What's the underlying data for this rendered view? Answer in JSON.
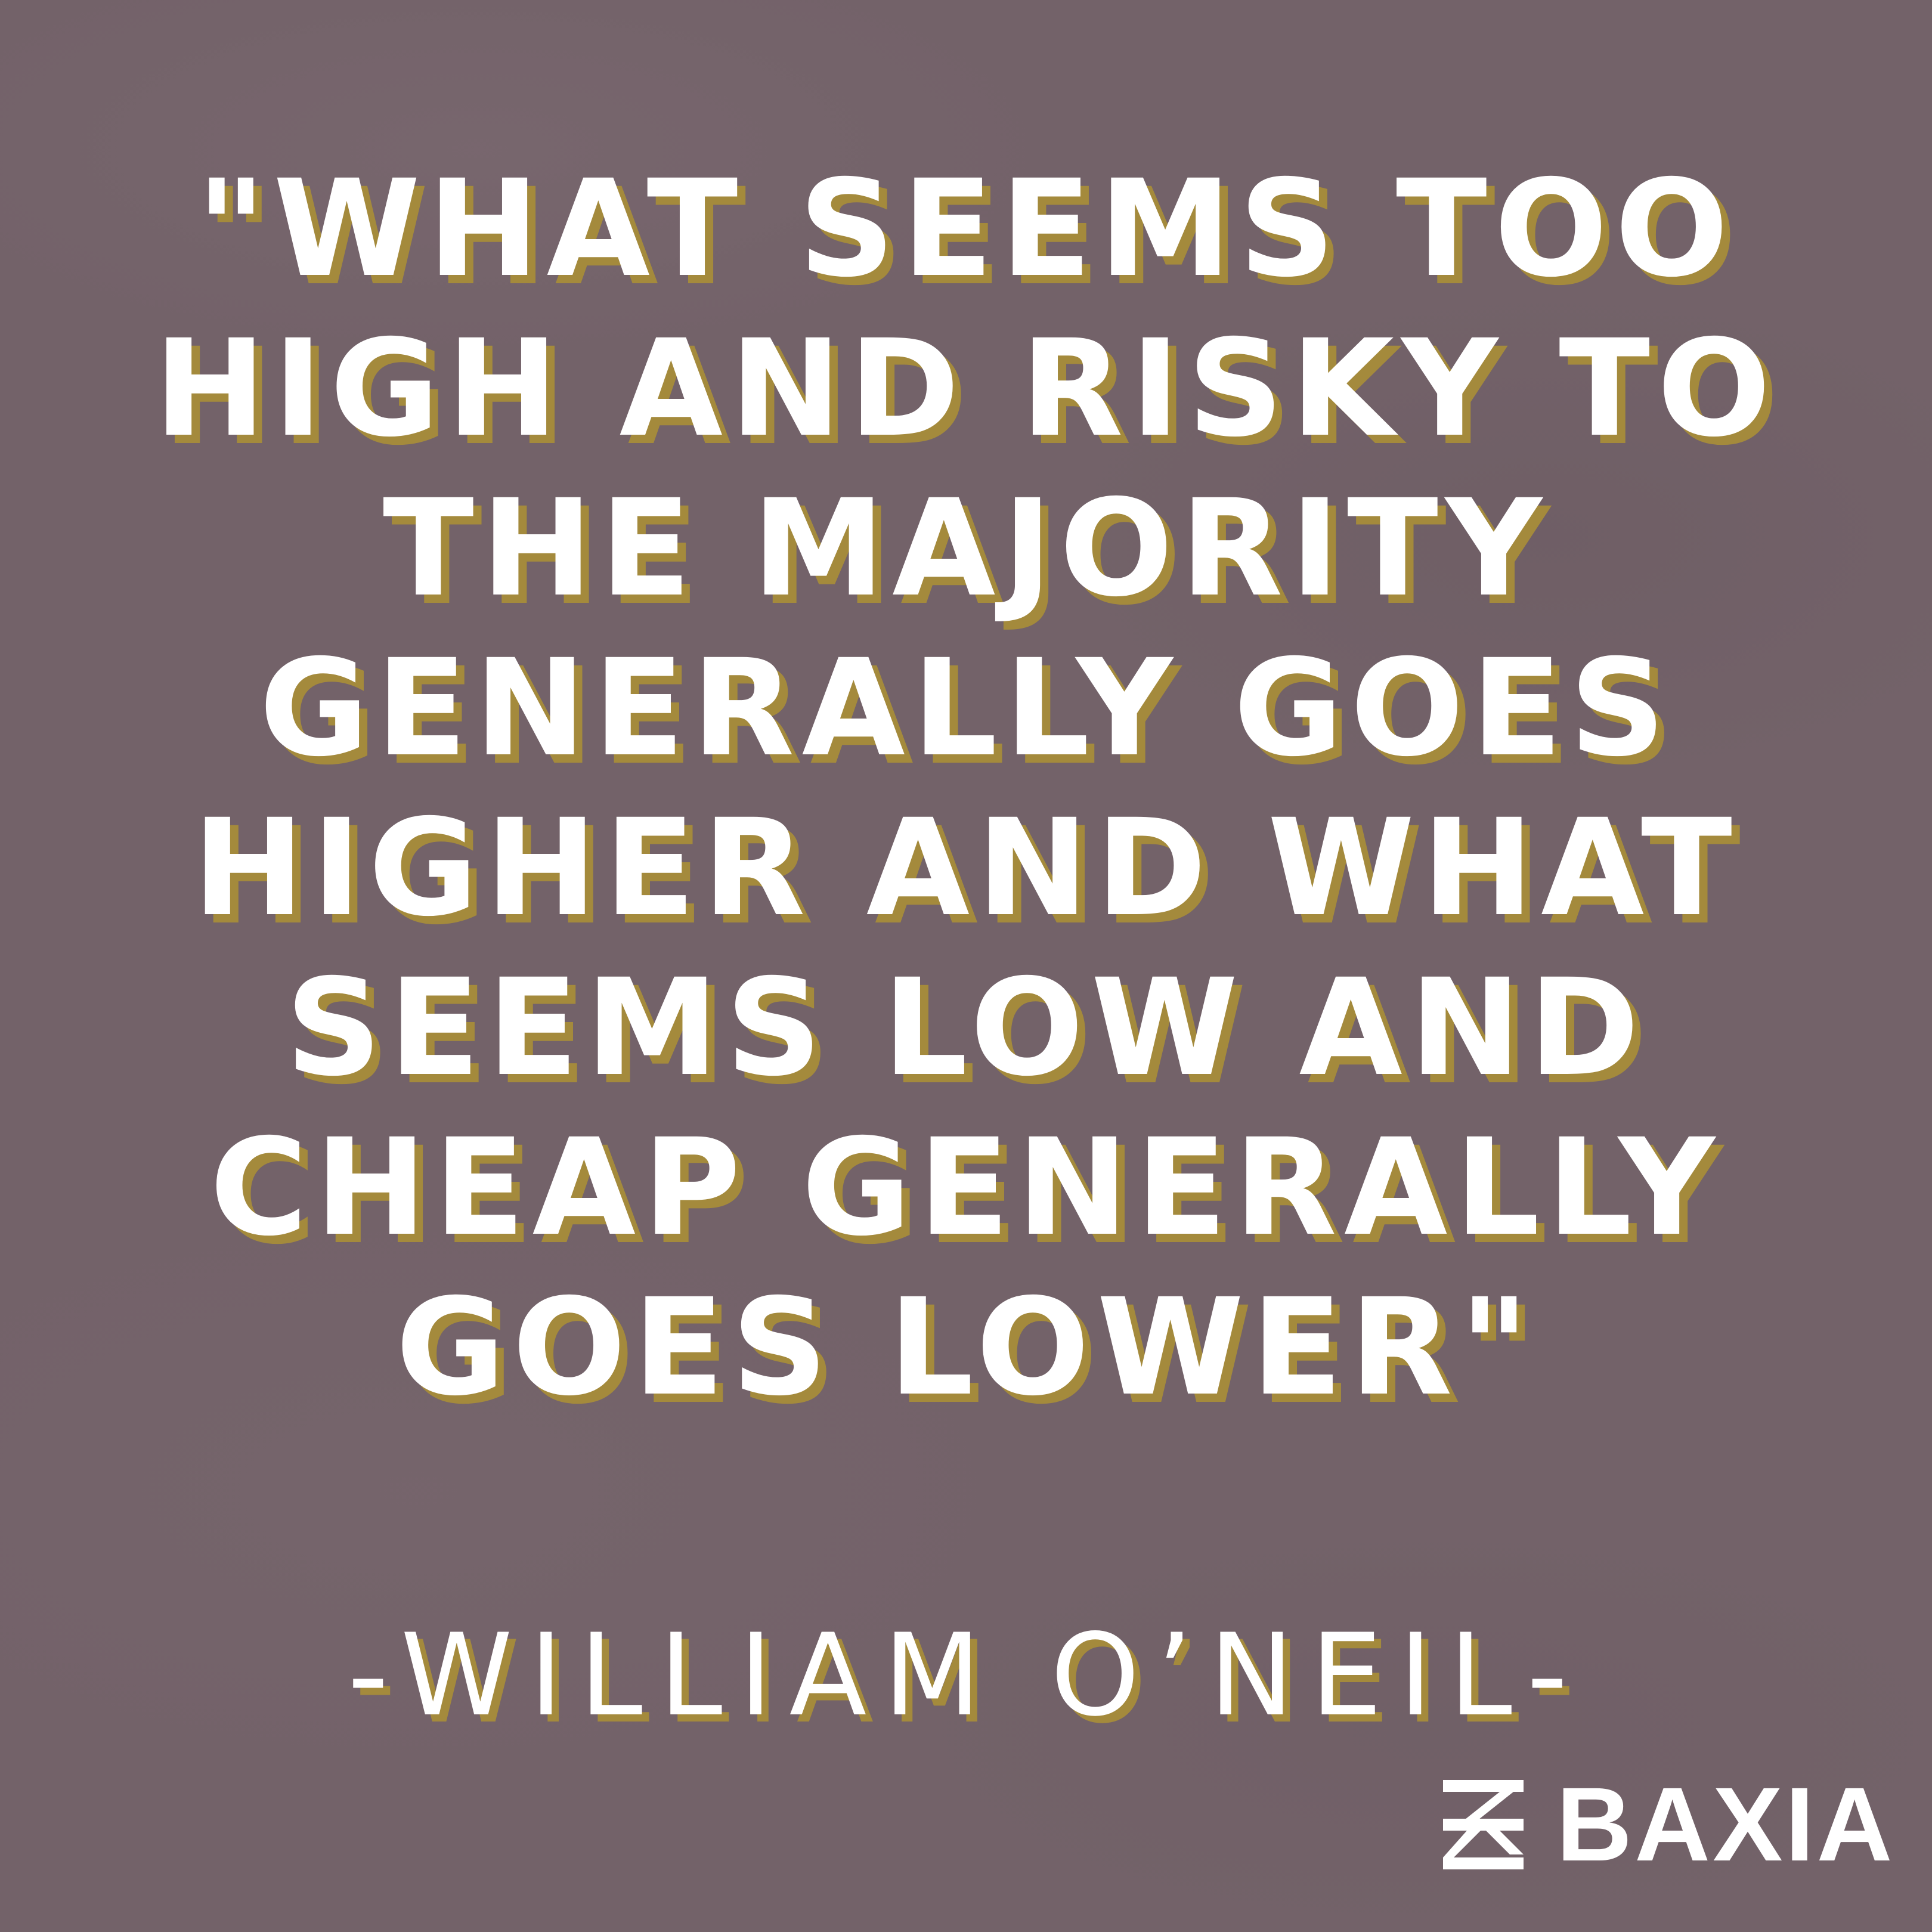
{
  "quote": {
    "lines": [
      "\"WHAT SEEMS TOO",
      "HIGH AND RISKY TO",
      "THE MAJORITY",
      "GENERALLY GOES",
      "HIGHER AND WHAT",
      "SEEMS LOW AND",
      "CHEAP GENERALLY",
      "GOES LOWER\""
    ]
  },
  "attribution": "-WILLIAM O’NEIL-",
  "brand": {
    "logo_icon": "baxia-logo-mark",
    "name": "BAXIA"
  },
  "colors": {
    "background": "#736269",
    "text": "#ffffff",
    "shadow": "#a48a3c"
  }
}
